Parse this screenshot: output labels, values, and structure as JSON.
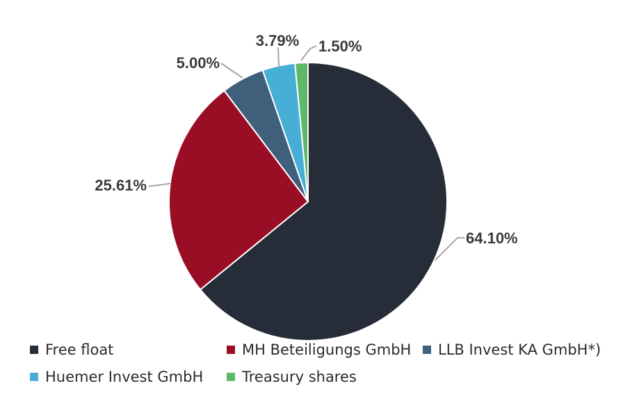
{
  "chart_data": {
    "type": "pie",
    "categories": [
      "Free float",
      "MH Beteiligungs GmbH",
      "LLB Invest KA GmbH*)",
      "Huemer Invest GmbH",
      "Treasury shares"
    ],
    "values": [
      64.1,
      25.61,
      5.0,
      3.79,
      1.5
    ],
    "labels": [
      "64.10%",
      "25.61%",
      "5.00%",
      "3.79%",
      "1.50%"
    ],
    "colors": [
      "#262d38",
      "#9a0e25",
      "#3f5f7b",
      "#47aed6",
      "#5db868"
    ],
    "legend_position": "bottom",
    "start_angle": "top",
    "direction": "clockwise"
  }
}
